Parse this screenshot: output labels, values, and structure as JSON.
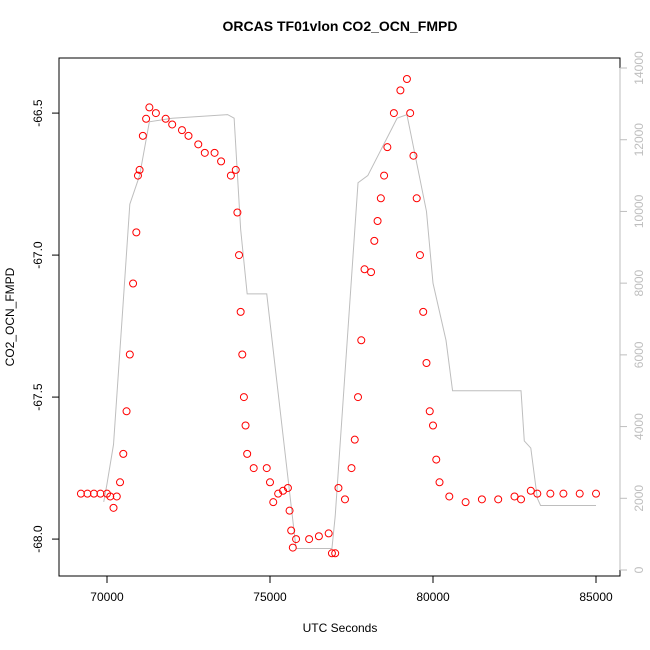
{
  "chart_data": {
    "type": "scatter",
    "title": "ORCAS TF01vlon CO2_OCN_FMPD",
    "xlabel": "UTC Seconds",
    "ylabel": "CO2_OCN_FMPD",
    "xlim": [
      68528,
      85736
    ],
    "xticks": [
      70000,
      75000,
      80000,
      85000
    ],
    "ylim": [
      -68.13,
      -66.306
    ],
    "yticks": [
      {
        "value": -68,
        "label": "-68.0"
      },
      -67.5,
      {
        "value": -67,
        "label": "-67.0"
      },
      -66.5
    ],
    "y2lim": [
      -167,
      14279
    ],
    "y2ticks": [
      0,
      2000,
      4000,
      6000,
      8000,
      10000,
      12000,
      14000
    ],
    "series": [
      {
        "type": "line",
        "axis": "y2",
        "color": "#bebebe",
        "x": [
          69900,
          70000,
          70200,
          70500,
          70700,
          71000,
          71300,
          72000,
          73700,
          73900,
          74100,
          74300,
          74900,
          75800,
          75900,
          76900,
          77000,
          77700,
          78000,
          78900,
          79200,
          79800,
          80000,
          80400,
          80600,
          82700,
          82800,
          83000,
          83200,
          83300,
          85000
        ],
        "values": [
          1900,
          2400,
          3500,
          7500,
          10200,
          11000,
          12500,
          12600,
          12700,
          12600,
          9500,
          7700,
          7700,
          600,
          600,
          600,
          1500,
          10800,
          11000,
          12600,
          12700,
          10000,
          8000,
          6400,
          5000,
          5000,
          3600,
          3400,
          2000,
          1800,
          1800
        ]
      },
      {
        "type": "scatter",
        "color": "#ff0000",
        "x": [
          69200,
          69400,
          69600,
          69800,
          70000,
          70100,
          70200,
          70300,
          70400,
          70500,
          70600,
          70700,
          70800,
          70900,
          70950,
          71000,
          71100,
          71200,
          71300,
          71500,
          71800,
          72000,
          72300,
          72500,
          72800,
          73000,
          73300,
          73500,
          73800,
          73950,
          74000,
          74050,
          74100,
          74150,
          74200,
          74250,
          74300,
          74500,
          74900,
          75000,
          75100,
          75250,
          75400,
          75550,
          75600,
          75650,
          75700,
          75800,
          76200,
          76500,
          76800,
          76900,
          77000,
          77100,
          77300,
          77500,
          77600,
          77700,
          77800,
          77900,
          78100,
          78200,
          78300,
          78400,
          78500,
          78600,
          78800,
          79000,
          79200,
          79300,
          79400,
          79500,
          79600,
          79700,
          79800,
          79900,
          80000,
          80100,
          80200,
          80500,
          81000,
          81500,
          82000,
          82500,
          82700,
          83000,
          83200,
          83600,
          84000,
          84500,
          85000
        ],
        "values": [
          -67.84,
          -67.84,
          -67.84,
          -67.84,
          -67.84,
          -67.85,
          -67.89,
          -67.85,
          -67.8,
          -67.7,
          -67.55,
          -67.35,
          -67.1,
          -66.92,
          -66.72,
          -66.7,
          -66.58,
          -66.52,
          -66.48,
          -66.5,
          -66.52,
          -66.54,
          -66.56,
          -66.58,
          -66.61,
          -66.64,
          -66.64,
          -66.67,
          -66.72,
          -66.7,
          -66.85,
          -67.0,
          -67.2,
          -67.35,
          -67.5,
          -67.6,
          -67.7,
          -67.75,
          -67.75,
          -67.8,
          -67.87,
          -67.84,
          -67.83,
          -67.82,
          -67.9,
          -67.97,
          -68.03,
          -68.0,
          -68.0,
          -67.99,
          -67.98,
          -68.05,
          -68.05,
          -67.82,
          -67.86,
          -67.75,
          -67.65,
          -67.5,
          -67.3,
          -67.05,
          -67.06,
          -66.95,
          -66.88,
          -66.8,
          -66.72,
          -66.62,
          -66.5,
          -66.42,
          -66.38,
          -66.5,
          -66.65,
          -66.8,
          -67.0,
          -67.2,
          -67.38,
          -67.55,
          -67.6,
          -67.72,
          -67.8,
          -67.85,
          -67.87,
          -67.86,
          -67.86,
          -67.85,
          -67.86,
          -67.83,
          -67.84,
          -67.84,
          -67.84,
          -67.84,
          -67.84
        ]
      }
    ]
  }
}
